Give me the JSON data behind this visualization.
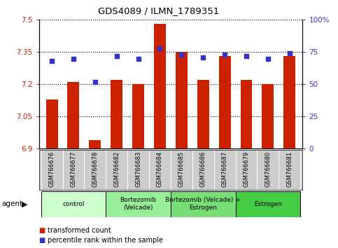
{
  "title": "GDS4089 / ILMN_1789351",
  "samples": [
    "GSM766676",
    "GSM766677",
    "GSM766678",
    "GSM766682",
    "GSM766683",
    "GSM766684",
    "GSM766685",
    "GSM766686",
    "GSM766687",
    "GSM766679",
    "GSM766680",
    "GSM766681"
  ],
  "bar_values": [
    7.13,
    7.21,
    6.94,
    7.22,
    7.2,
    7.48,
    7.35,
    7.22,
    7.33,
    7.22,
    7.2,
    7.33
  ],
  "dot_values": [
    68,
    70,
    52,
    72,
    70,
    78,
    73,
    71,
    73,
    72,
    70,
    74
  ],
  "ylim_left": [
    6.9,
    7.5
  ],
  "ylim_right": [
    0,
    100
  ],
  "yticks_left": [
    6.9,
    7.05,
    7.2,
    7.35,
    7.5
  ],
  "yticks_right": [
    0,
    25,
    50,
    75,
    100
  ],
  "ytick_labels_left": [
    "6.9",
    "7.05",
    "7.2",
    "7.35",
    "7.5"
  ],
  "ytick_labels_right": [
    "0",
    "25",
    "50",
    "75",
    "100%"
  ],
  "bar_color": "#cc2200",
  "dot_color": "#3333cc",
  "bar_bottom": 6.9,
  "groups": [
    {
      "label": "control",
      "start": 0,
      "end": 3,
      "color": "#ccffcc"
    },
    {
      "label": "Bortezomib\n(Velcade)",
      "start": 3,
      "end": 6,
      "color": "#99ee99"
    },
    {
      "label": "Bortezomib (Velcade) +\nEstrogen",
      "start": 6,
      "end": 9,
      "color": "#77dd77"
    },
    {
      "label": "Estrogen",
      "start": 9,
      "end": 12,
      "color": "#44cc44"
    }
  ],
  "legend_items": [
    {
      "label": "transformed count",
      "color": "#cc2200"
    },
    {
      "label": "percentile rank within the sample",
      "color": "#3333cc"
    }
  ],
  "left_axis_color": "#cc2200",
  "right_axis_color": "#3333cc",
  "plot_bg_color": "#ffffff",
  "grid_color": "#000000",
  "sample_bg_color": "#cccccc"
}
